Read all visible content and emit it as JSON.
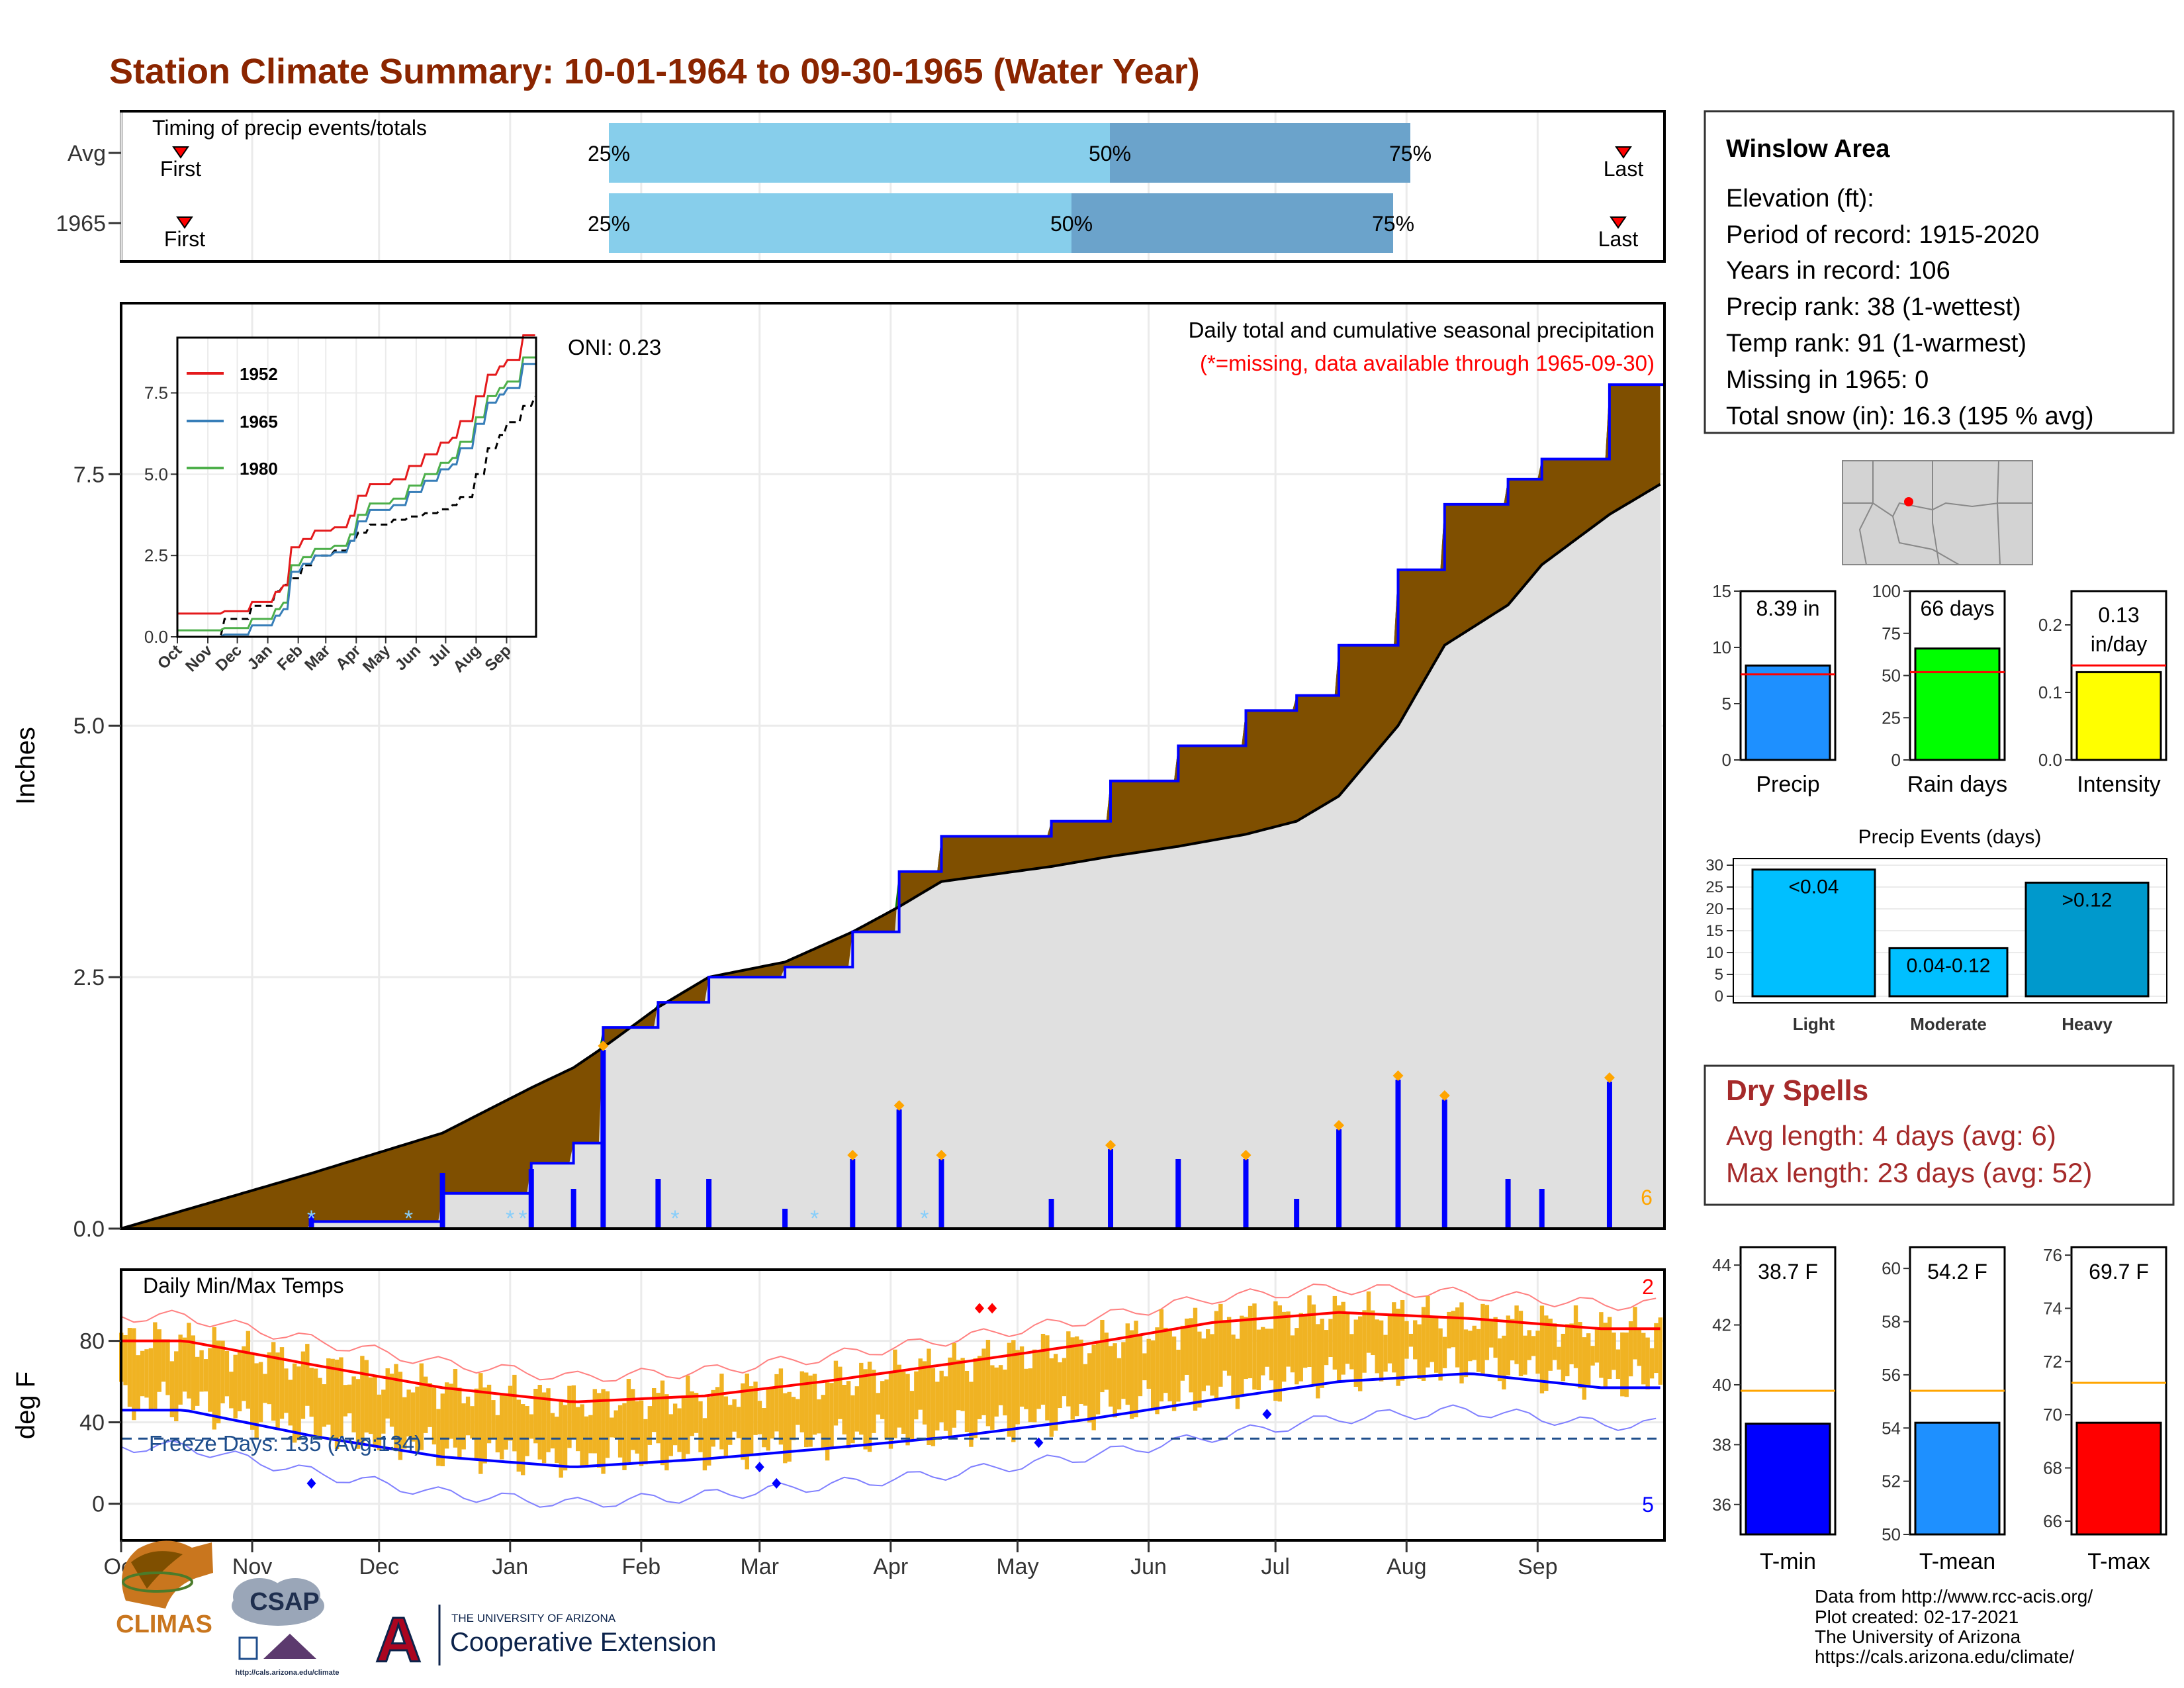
{
  "title": "Station Climate Summary: 10-01-1964 to 09-30-1965 (Water Year)",
  "colors": {
    "title": "#8B2500",
    "light_blue": "#87CEEB",
    "mid_blue": "#6BA3CB",
    "green": "#008000",
    "brown": "#7F4F00",
    "gray_fill": "#E0E0E0",
    "blue_line": "#0000FF",
    "orange": "#FFA500",
    "red": "#FF0000",
    "temp_bar": "#F0B323",
    "dry_red": "#A52A2A"
  },
  "timing_panel": {
    "title": "Timing of precip events/totals",
    "rows": [
      {
        "label": "Avg",
        "first_label": "First",
        "last_label": "Last",
        "pct25": "25%",
        "pct50": "50%",
        "pct75": "75%"
      },
      {
        "label": "1965",
        "first_label": "First",
        "last_label": "Last",
        "pct25": "25%",
        "pct50": "50%",
        "pct75": "75%"
      }
    ]
  },
  "precip_panel": {
    "ylabel": "Inches",
    "yticks": [
      "0.0",
      "2.5",
      "5.0",
      "7.5"
    ],
    "oni": "ONI: 0.23",
    "note1": "Daily total and cumulative seasonal precipitation",
    "note2": "(*=missing, data available through 1965-09-30)",
    "count_label": "6"
  },
  "inset": {
    "yticks": [
      "0.0",
      "2.5",
      "5.0",
      "7.5"
    ],
    "xticks": [
      "Oct",
      "Nov",
      "Dec",
      "Jan",
      "Feb",
      "Mar",
      "Apr",
      "May",
      "Jun",
      "Jul",
      "Aug",
      "Sep"
    ],
    "legend": [
      "1952",
      "1965",
      "1980"
    ]
  },
  "temp_panel": {
    "ylabel": "deg F",
    "title": "Daily Min/Max Temps",
    "yticks": [
      "0",
      "40",
      "80"
    ],
    "freeze_label": "Freeze Days: 135 (Avg:134)",
    "high_count": "2",
    "low_count": "5",
    "months": [
      "Oct",
      "Nov",
      "Dec",
      "Jan",
      "Feb",
      "Mar",
      "Apr",
      "May",
      "Jun",
      "Jul",
      "Aug",
      "Sep"
    ]
  },
  "info_box": {
    "station": "Winslow Area",
    "lines": [
      "Elevation (ft):",
      "Period of record: 1915-2020",
      "Years in record: 106",
      "Precip rank: 38 (1-wettest)",
      "Temp rank: 91 (1-warmest)",
      "Missing in 1965: 0",
      "Total snow (in): 16.3 (195 % avg)"
    ]
  },
  "mini_bars": {
    "precip": {
      "label": "Precip",
      "value_text": "8.39 in",
      "yticks": [
        "0",
        "5",
        "10",
        "15"
      ]
    },
    "rain_days": {
      "label": "Rain days",
      "value_text": "66 days",
      "yticks": [
        "0",
        "25",
        "50",
        "75",
        "100"
      ]
    },
    "intensity": {
      "label": "Intensity",
      "value_text1": "0.13",
      "value_text2": "in/day",
      "yticks": [
        "0.0",
        "0.1",
        "0.2"
      ]
    }
  },
  "events": {
    "title": "Precip Events (days)",
    "yticks": [
      "0",
      "5",
      "10",
      "15",
      "20",
      "25",
      "30"
    ],
    "bars": [
      {
        "cat": "Light",
        "label": "<0.04"
      },
      {
        "cat": "Moderate",
        "label": "0.04-0.12"
      },
      {
        "cat": "Heavy",
        "label": ">0.12"
      }
    ]
  },
  "dry_spells": {
    "title": "Dry Spells",
    "avg_line": "Avg length: 4 days (avg: 6)",
    "max_line": "Max length: 23 days (avg: 52)"
  },
  "temp_bars": {
    "tmin": {
      "label": "T-min",
      "value_text": "38.7 F",
      "yticks": [
        "36",
        "38",
        "40",
        "42",
        "44"
      ]
    },
    "tmean": {
      "label": "T-mean",
      "value_text": "54.2 F",
      "yticks": [
        "50",
        "52",
        "54",
        "56",
        "58",
        "60"
      ]
    },
    "tmax": {
      "label": "T-max",
      "value_text": "69.7 F",
      "yticks": [
        "66",
        "68",
        "70",
        "72",
        "74",
        "76"
      ]
    }
  },
  "footer": {
    "lines": [
      "Data from http://www.rcc-acis.org/",
      "Plot created: 02-17-2021",
      "The University of Arizona",
      "https://cals.arizona.edu/climate/"
    ],
    "climas": "CLIMAS",
    "csap": "CSAP",
    "csap_url": "http://cals.arizona.edu/climate",
    "ua_small": "THE UNIVERSITY OF ARIZONA",
    "ua_big": "Cooperative Extension",
    "ua_letter": "A"
  },
  "chart_data": [
    {
      "type": "bar",
      "title": "Timing of precip events/totals",
      "categories": [
        "Avg",
        "1965"
      ],
      "series": [
        {
          "name": "First",
          "values": [
            "Oct 16",
            "Oct 17"
          ]
        },
        {
          "name": "25%",
          "values": [
            "Jan 27",
            "Jan 27"
          ]
        },
        {
          "name": "50%",
          "values": [
            "Apr 22",
            "Apr 12"
          ]
        },
        {
          "name": "75%",
          "values": [
            "Jul 31",
            "Jul 27"
          ]
        },
        {
          "name": "Last",
          "values": [
            "Sep 19",
            "Sep 19"
          ]
        }
      ]
    },
    {
      "type": "area",
      "title": "Daily total and cumulative seasonal precipitation",
      "ylabel": "Inches",
      "ylim": [
        0,
        9.2
      ],
      "x": [
        "Oct 1",
        "Nov 15",
        "Dec 16",
        "Jan 6",
        "Jan 16",
        "Jan 23",
        "Feb 5",
        "Feb 17",
        "Mar 7",
        "Mar 23",
        "Apr 3",
        "Apr 13",
        "May 9",
        "May 23",
        "Jun 8",
        "Jun 24",
        "Jul 6",
        "Jul 16",
        "Jul 30",
        "Aug 10",
        "Aug 25",
        "Sep 2",
        "Sep 18",
        "Sep 30"
      ],
      "series": [
        {
          "name": "1965",
          "values": [
            0.0,
            0.07,
            0.35,
            0.65,
            0.85,
            2.0,
            2.25,
            2.5,
            2.6,
            2.95,
            3.55,
            3.9,
            4.05,
            4.45,
            4.8,
            5.15,
            5.3,
            5.8,
            6.55,
            7.2,
            7.45,
            7.65,
            8.39,
            8.39
          ]
        },
        {
          "name": "Average",
          "values": [
            0.0,
            0.55,
            0.95,
            1.4,
            1.6,
            1.8,
            2.2,
            2.5,
            2.65,
            2.95,
            3.2,
            3.45,
            3.6,
            3.7,
            3.8,
            3.92,
            4.05,
            4.3,
            5.0,
            5.8,
            6.2,
            6.6,
            7.1,
            7.4
          ]
        }
      ]
    },
    {
      "type": "line",
      "title": "Daily Min/Max Temps",
      "ylabel": "deg F",
      "ylim": [
        -18,
        115
      ],
      "categories": [
        "Oct",
        "Nov",
        "Dec",
        "Jan",
        "Feb",
        "Mar",
        "Apr",
        "May",
        "Jun",
        "Jul",
        "Aug",
        "Sep"
      ],
      "series": [
        {
          "name": "Avg max",
          "values": [
            80,
            68,
            57,
            50,
            53,
            60,
            69,
            78,
            89,
            94,
            91,
            86
          ]
        },
        {
          "name": "Avg min",
          "values": [
            46,
            33,
            23,
            18,
            22,
            27,
            33,
            41,
            51,
            60,
            64,
            57
          ]
        }
      ]
    },
    {
      "type": "bar",
      "categories": [
        "Precip",
        "Rain days",
        "Intensity"
      ],
      "series": [
        {
          "name": "1965",
          "values": [
            8.39,
            66,
            0.13
          ]
        },
        {
          "name": "Average",
          "values": [
            7.6,
            52,
            0.14
          ]
        }
      ]
    },
    {
      "type": "bar",
      "title": "Precip Events (days)",
      "categories": [
        "Light",
        "Moderate",
        "Heavy"
      ],
      "ylim": [
        0,
        30
      ],
      "values": [
        29,
        11,
        26
      ]
    },
    {
      "type": "bar",
      "categories": [
        "T-min",
        "T-mean",
        "T-max"
      ],
      "series": [
        {
          "name": "1965",
          "values": [
            38.7,
            54.2,
            69.7
          ]
        },
        {
          "name": "Average",
          "values": [
            39.8,
            55.4,
            71.2
          ]
        }
      ]
    }
  ]
}
